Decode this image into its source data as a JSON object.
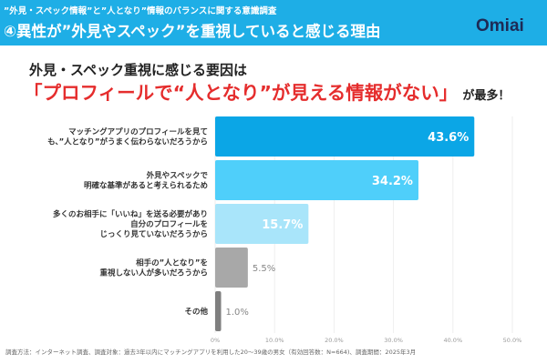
{
  "header": {
    "supertitle": "”外見・スペック情報”と”人となり”情報のバランスに関する意識調査",
    "title": "④異性が”外見やスペック”を重視していると感じる理由",
    "logo": "Omiai",
    "color": "#1eaee6"
  },
  "headline": {
    "line1": "外見・スペック重視に感じる要因は",
    "highlight": "「プロフィールで“人となり”が見える情報がない」",
    "tail": "が最多！"
  },
  "chart_data": {
    "type": "bar",
    "orientation": "horizontal",
    "categories": [
      [
        "マッチングアプリのプロフィールを見て",
        "も、”人となり”がうまく伝わらないだろうから"
      ],
      [
        "外見やスペックで",
        "明確な基準があると考えられるため"
      ],
      [
        "多くのお相手に「いいね」を送る必要があり",
        "自分のプロフィールを",
        "じっくり見ていないだろうから"
      ],
      [
        "相手の”人となり”を",
        "重視しない人が多いだろうから"
      ],
      [
        "その他"
      ]
    ],
    "values": [
      43.6,
      34.2,
      15.7,
      5.5,
      1.0
    ],
    "data_labels": [
      "43.6%",
      "34.2%",
      "15.7%",
      "5.5%",
      "1.0%"
    ],
    "colors": [
      "#0ba6e6",
      "#4fcffa",
      "#a9e5fa",
      "#a8a8a8",
      "#7f7f7f"
    ],
    "xlim": [
      0,
      50
    ],
    "ticks": [
      "0%",
      "10.0%",
      "20.0%",
      "30.0%",
      "40.0%",
      "50.0%"
    ],
    "grid": true
  },
  "footnote": "調査方法：インターネット調査、調査対象：過去3年以内にマッチングアプリを利用した20～39歳の男女（有効回答数：N=664)、調査期間：2025年3月"
}
